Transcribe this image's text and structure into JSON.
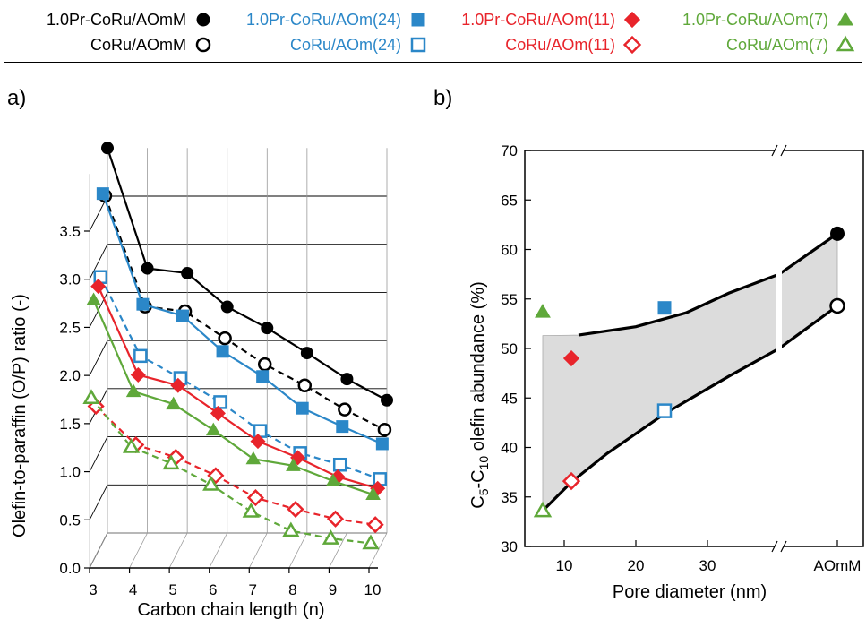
{
  "legend": [
    {
      "label": "1.0Pr-CoRu/AOmM",
      "color": "#000000",
      "marker": "circle",
      "filled": true
    },
    {
      "label": "CoRu/AOmM",
      "color": "#000000",
      "marker": "circle",
      "filled": false
    },
    {
      "label": "1.0Pr-CoRu/AOm(24)",
      "color": "#2b87c8",
      "marker": "square",
      "filled": true
    },
    {
      "label": "CoRu/AOm(24)",
      "color": "#2b87c8",
      "marker": "square",
      "filled": false
    },
    {
      "label": "1.0Pr-CoRu/AOm(11)",
      "color": "#e8242b",
      "marker": "diamond",
      "filled": true
    },
    {
      "label": "CoRu/AOm(11)",
      "color": "#e8242b",
      "marker": "diamond",
      "filled": false
    },
    {
      "label": "1.0Pr-CoRu/AOm(7)",
      "color": "#5fa83a",
      "marker": "triangle",
      "filled": true
    },
    {
      "label": "CoRu/AOm(7)",
      "color": "#5fa83a",
      "marker": "triangle",
      "filled": false
    }
  ],
  "panel_labels": {
    "a": "a)",
    "b": "b)"
  },
  "chart_data": [
    {
      "type": "line",
      "panel": "a",
      "title": "",
      "xlabel": "Carbon chain length (n)",
      "ylabel": "Olefin-to-paraffin (O/P) ratio (-)",
      "x": [
        3,
        4,
        5,
        6,
        7,
        8,
        9,
        10
      ],
      "x_ticks": [
        "3",
        "4",
        "5",
        "6",
        "7",
        "8",
        "9",
        "10"
      ],
      "y_ticks": [
        "0.0",
        "0.5",
        "1.0",
        "1.5",
        "2.0",
        "2.5",
        "3.0",
        "3.5"
      ],
      "ylim": [
        0,
        3.7
      ],
      "grid": true,
      "series": [
        {
          "name": "1.0Pr-CoRu/AOmM",
          "values": [
            4.0,
            2.75,
            2.7,
            2.35,
            2.13,
            1.87,
            1.6,
            1.38
          ],
          "color": "#000000",
          "marker": "circle",
          "filled": true,
          "dashed": false
        },
        {
          "name": "CoRu/AOmM",
          "values": [
            3.55,
            2.4,
            2.35,
            2.07,
            1.8,
            1.58,
            1.33,
            1.12
          ],
          "color": "#000000",
          "marker": "circle",
          "filled": false,
          "dashed": true
        },
        {
          "name": "1.0Pr-CoRu/AOm(24)",
          "values": [
            3.62,
            2.47,
            2.35,
            1.98,
            1.72,
            1.39,
            1.2,
            1.02
          ],
          "color": "#2b87c8",
          "marker": "square",
          "filled": true,
          "dashed": false
        },
        {
          "name": "CoRu/AOm(24)",
          "values": [
            2.8,
            1.98,
            1.75,
            1.5,
            1.2,
            0.97,
            0.85,
            0.7
          ],
          "color": "#2b87c8",
          "marker": "square",
          "filled": false,
          "dashed": true
        },
        {
          "name": "1.0Pr-CoRu/AOm(11)",
          "values": [
            2.75,
            1.83,
            1.72,
            1.43,
            1.14,
            0.97,
            0.77,
            0.65
          ],
          "color": "#e8242b",
          "marker": "diamond",
          "filled": true,
          "dashed": false
        },
        {
          "name": "CoRu/AOm(11)",
          "values": [
            1.55,
            1.15,
            1.02,
            0.83,
            0.6,
            0.48,
            0.38,
            0.32
          ],
          "color": "#e8242b",
          "marker": "diamond",
          "filled": false,
          "dashed": true
        },
        {
          "name": "1.0Pr-CoRu/AOm(7)",
          "values": [
            2.7,
            1.75,
            1.62,
            1.35,
            1.05,
            0.98,
            0.82,
            0.68
          ],
          "color": "#5fa83a",
          "marker": "triangle",
          "filled": true,
          "dashed": false
        },
        {
          "name": "CoRu/AOm(7)",
          "values": [
            1.73,
            1.22,
            1.05,
            0.83,
            0.55,
            0.35,
            0.27,
            0.22
          ],
          "color": "#5fa83a",
          "marker": "triangle",
          "filled": false,
          "dashed": true
        }
      ]
    },
    {
      "type": "scatter",
      "panel": "b",
      "title": "",
      "xlabel": "Pore diameter (nm)",
      "ylabel": "C5-C10 olefin abundance (%)",
      "ylabel_parts": {
        "c": "C",
        "sub1": "5",
        "mid": "-C",
        "sub2": "10",
        "rest": " olefin abundance (%)"
      },
      "x_ticks": [
        "10",
        "20",
        "30",
        "AOmM"
      ],
      "y_ticks": [
        "30",
        "35",
        "40",
        "45",
        "50",
        "55",
        "60",
        "65",
        "70"
      ],
      "xlim": [
        5,
        38
      ],
      "ylim": [
        30,
        70
      ],
      "axis_break": true,
      "shaded_region": true,
      "points": [
        {
          "name": "1.0Pr-CoRu/AOmM",
          "x": "AOmM",
          "y": 61.6,
          "color": "#000000",
          "marker": "circle",
          "filled": true
        },
        {
          "name": "CoRu/AOmM",
          "x": "AOmM",
          "y": 54.3,
          "color": "#000000",
          "marker": "circle",
          "filled": false
        },
        {
          "name": "1.0Pr-CoRu/AOm(24)",
          "x": 24,
          "y": 54.1,
          "color": "#2b87c8",
          "marker": "square",
          "filled": true
        },
        {
          "name": "CoRu/AOm(24)",
          "x": 24,
          "y": 43.7,
          "color": "#2b87c8",
          "marker": "square",
          "filled": false
        },
        {
          "name": "1.0Pr-CoRu/AOm(11)",
          "x": 11,
          "y": 49.0,
          "color": "#e8242b",
          "marker": "diamond",
          "filled": true
        },
        {
          "name": "CoRu/AOm(11)",
          "x": 11,
          "y": 36.6,
          "color": "#e8242b",
          "marker": "diamond",
          "filled": false
        },
        {
          "name": "1.0Pr-CoRu/AOm(7)",
          "x": 7,
          "y": 53.7,
          "color": "#5fa83a",
          "marker": "triangle",
          "filled": true
        },
        {
          "name": "CoRu/AOm(7)",
          "x": 7,
          "y": 33.6,
          "color": "#5fa83a",
          "marker": "triangle",
          "filled": false
        }
      ]
    }
  ]
}
